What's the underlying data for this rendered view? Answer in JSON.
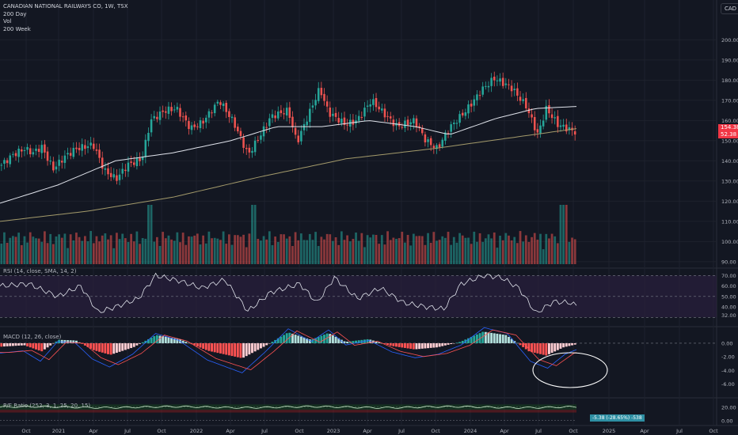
{
  "header": {
    "title": "CANADIAN NATIONAL RAILWAYS CO, 1W, TSX",
    "items": [
      "200 Day",
      "Vol",
      "200 Week"
    ],
    "currency": "CAD"
  },
  "colors": {
    "background": "#131722",
    "up": "#26a69a",
    "down": "#ef5350",
    "ma200day": "#e0e3eb",
    "ma200week": "#a39a6b",
    "rsi": "#e0e3eb",
    "rsi_band": "#2a1f3d",
    "macd_line": "#2962ff",
    "signal_line": "#ff5252",
    "annotation": "#ffffff"
  },
  "panes": {
    "rsi_label": "RSI (14, close, SMA, 14, 2)",
    "macd_label": "MACD (12, 26, close)",
    "pe_label": "P/E Ratio (252, 3, 1, 25, 20, 15)"
  },
  "price_tags": {
    "last": "154.38",
    "countdown": "52.38"
  },
  "pe_readout": "-5.38 (-28.65%) -538",
  "chart_data": [
    {
      "type": "candlestick",
      "title": "CANADIAN NATIONAL RAILWAYS CO, 1W, TSX",
      "xlabel": "",
      "ylabel": "",
      "x_ticks": [
        "Oct",
        "2021",
        "Apr",
        "Jul",
        "Oct",
        "2022",
        "Apr",
        "Jul",
        "Oct",
        "2023",
        "Apr",
        "Jul",
        "Oct",
        "2024",
        "Apr",
        "Jul",
        "Oct",
        "2025",
        "Apr",
        "Jul",
        "Oct"
      ],
      "y_ticks": [
        90,
        100,
        110,
        120,
        130,
        140,
        150,
        160,
        170,
        180,
        190,
        200
      ],
      "ylim": [
        88,
        208
      ],
      "grid": true,
      "legend": "top-left",
      "price_anchors": [
        {
          "x": 0,
          "close": 138
        },
        {
          "x": 0.02,
          "close": 143
        },
        {
          "x": 0.04,
          "close": 146
        },
        {
          "x": 0.055,
          "close": 144
        },
        {
          "x": 0.07,
          "close": 147
        },
        {
          "x": 0.09,
          "close": 136
        },
        {
          "x": 0.11,
          "close": 142
        },
        {
          "x": 0.13,
          "close": 146
        },
        {
          "x": 0.16,
          "close": 148
        },
        {
          "x": 0.18,
          "close": 135
        },
        {
          "x": 0.2,
          "close": 131
        },
        {
          "x": 0.22,
          "close": 138
        },
        {
          "x": 0.245,
          "close": 141
        },
        {
          "x": 0.26,
          "close": 160
        },
        {
          "x": 0.285,
          "close": 165
        },
        {
          "x": 0.305,
          "close": 166
        },
        {
          "x": 0.33,
          "close": 156
        },
        {
          "x": 0.35,
          "close": 159
        },
        {
          "x": 0.38,
          "close": 170
        },
        {
          "x": 0.405,
          "close": 159
        },
        {
          "x": 0.43,
          "close": 143
        },
        {
          "x": 0.45,
          "close": 152
        },
        {
          "x": 0.47,
          "close": 162
        },
        {
          "x": 0.5,
          "close": 165
        },
        {
          "x": 0.515,
          "close": 149
        },
        {
          "x": 0.54,
          "close": 166
        },
        {
          "x": 0.555,
          "close": 176
        },
        {
          "x": 0.57,
          "close": 164
        },
        {
          "x": 0.6,
          "close": 158
        },
        {
          "x": 0.62,
          "close": 160
        },
        {
          "x": 0.645,
          "close": 170
        },
        {
          "x": 0.665,
          "close": 164
        },
        {
          "x": 0.69,
          "close": 157
        },
        {
          "x": 0.72,
          "close": 160
        },
        {
          "x": 0.74,
          "close": 150
        },
        {
          "x": 0.76,
          "close": 146
        },
        {
          "x": 0.78,
          "close": 156
        },
        {
          "x": 0.81,
          "close": 165
        },
        {
          "x": 0.84,
          "close": 176
        },
        {
          "x": 0.86,
          "close": 181
        },
        {
          "x": 0.89,
          "close": 176
        },
        {
          "x": 0.915,
          "close": 167
        },
        {
          "x": 0.935,
          "close": 153
        },
        {
          "x": 0.95,
          "close": 166
        },
        {
          "x": 0.97,
          "close": 158
        },
        {
          "x": 1.0,
          "close": 154.38
        }
      ],
      "ma_200day_anchors": [
        {
          "x": 0,
          "v": 119
        },
        {
          "x": 0.1,
          "v": 128
        },
        {
          "x": 0.2,
          "v": 140
        },
        {
          "x": 0.3,
          "v": 144
        },
        {
          "x": 0.4,
          "v": 150
        },
        {
          "x": 0.48,
          "v": 157
        },
        {
          "x": 0.56,
          "v": 157
        },
        {
          "x": 0.64,
          "v": 160
        },
        {
          "x": 0.72,
          "v": 157
        },
        {
          "x": 0.78,
          "v": 153
        },
        {
          "x": 0.86,
          "v": 161
        },
        {
          "x": 0.93,
          "v": 166
        },
        {
          "x": 1.0,
          "v": 167
        }
      ],
      "ma_200week_anchors": [
        {
          "x": 0,
          "v": 110
        },
        {
          "x": 0.15,
          "v": 115
        },
        {
          "x": 0.3,
          "v": 122
        },
        {
          "x": 0.45,
          "v": 132
        },
        {
          "x": 0.6,
          "v": 141
        },
        {
          "x": 0.75,
          "v": 146
        },
        {
          "x": 0.9,
          "v": 152
        },
        {
          "x": 1.0,
          "v": 156
        }
      ]
    },
    {
      "type": "bar",
      "name": "Vol",
      "volume_peak_positions": [
        0.26,
        0.44,
        0.98
      ],
      "ylim": [
        0,
        1
      ]
    },
    {
      "type": "line",
      "name": "RSI",
      "y_ticks": [
        32,
        40,
        50,
        60,
        70
      ],
      "ylim": [
        28,
        74
      ],
      "band": [
        30,
        70
      ],
      "anchors": [
        {
          "x": 0,
          "v": 60
        },
        {
          "x": 0.05,
          "v": 62
        },
        {
          "x": 0.1,
          "v": 50
        },
        {
          "x": 0.14,
          "v": 60
        },
        {
          "x": 0.17,
          "v": 35
        },
        {
          "x": 0.2,
          "v": 40
        },
        {
          "x": 0.24,
          "v": 48
        },
        {
          "x": 0.27,
          "v": 70
        },
        {
          "x": 0.31,
          "v": 65
        },
        {
          "x": 0.35,
          "v": 58
        },
        {
          "x": 0.39,
          "v": 66
        },
        {
          "x": 0.43,
          "v": 36
        },
        {
          "x": 0.47,
          "v": 54
        },
        {
          "x": 0.52,
          "v": 62
        },
        {
          "x": 0.55,
          "v": 44
        },
        {
          "x": 0.58,
          "v": 68
        },
        {
          "x": 0.62,
          "v": 48
        },
        {
          "x": 0.66,
          "v": 58
        },
        {
          "x": 0.7,
          "v": 44
        },
        {
          "x": 0.74,
          "v": 40
        },
        {
          "x": 0.77,
          "v": 38
        },
        {
          "x": 0.8,
          "v": 62
        },
        {
          "x": 0.84,
          "v": 70
        },
        {
          "x": 0.87,
          "v": 68
        },
        {
          "x": 0.9,
          "v": 58
        },
        {
          "x": 0.93,
          "v": 34
        },
        {
          "x": 0.96,
          "v": 45
        },
        {
          "x": 0.99,
          "v": 44
        },
        {
          "x": 1.0,
          "v": 41
        }
      ]
    },
    {
      "type": "bar",
      "name": "MACD",
      "y_ticks": [
        0.0,
        -2.0,
        -4.0,
        -6.0
      ],
      "ylim": [
        -6.5,
        2.2
      ],
      "histogram_anchors": [
        {
          "x": 0,
          "v": -0.5
        },
        {
          "x": 0.04,
          "v": -0.3
        },
        {
          "x": 0.07,
          "v": -1.2
        },
        {
          "x": 0.1,
          "v": 0.5
        },
        {
          "x": 0.13,
          "v": 0.4
        },
        {
          "x": 0.16,
          "v": -1.0
        },
        {
          "x": 0.19,
          "v": -1.7
        },
        {
          "x": 0.23,
          "v": -0.6
        },
        {
          "x": 0.27,
          "v": 1.2
        },
        {
          "x": 0.31,
          "v": 0.6
        },
        {
          "x": 0.36,
          "v": -1.1
        },
        {
          "x": 0.42,
          "v": -2.2
        },
        {
          "x": 0.46,
          "v": -0.4
        },
        {
          "x": 0.5,
          "v": 1.6
        },
        {
          "x": 0.54,
          "v": 0.5
        },
        {
          "x": 0.57,
          "v": 1.5
        },
        {
          "x": 0.6,
          "v": 0.2
        },
        {
          "x": 0.64,
          "v": 0.6
        },
        {
          "x": 0.68,
          "v": -0.4
        },
        {
          "x": 0.72,
          "v": -0.9
        },
        {
          "x": 0.76,
          "v": -0.6
        },
        {
          "x": 0.8,
          "v": 0.2
        },
        {
          "x": 0.84,
          "v": 1.7
        },
        {
          "x": 0.88,
          "v": 1.2
        },
        {
          "x": 0.92,
          "v": -1.2
        },
        {
          "x": 0.95,
          "v": -1.8
        },
        {
          "x": 0.98,
          "v": -0.6
        },
        {
          "x": 1.0,
          "v": -0.2
        }
      ]
    },
    {
      "type": "area",
      "name": "P/E Ratio",
      "y_ticks": [
        20.0,
        0.0
      ],
      "ylim": [
        -5,
        28
      ]
    }
  ]
}
